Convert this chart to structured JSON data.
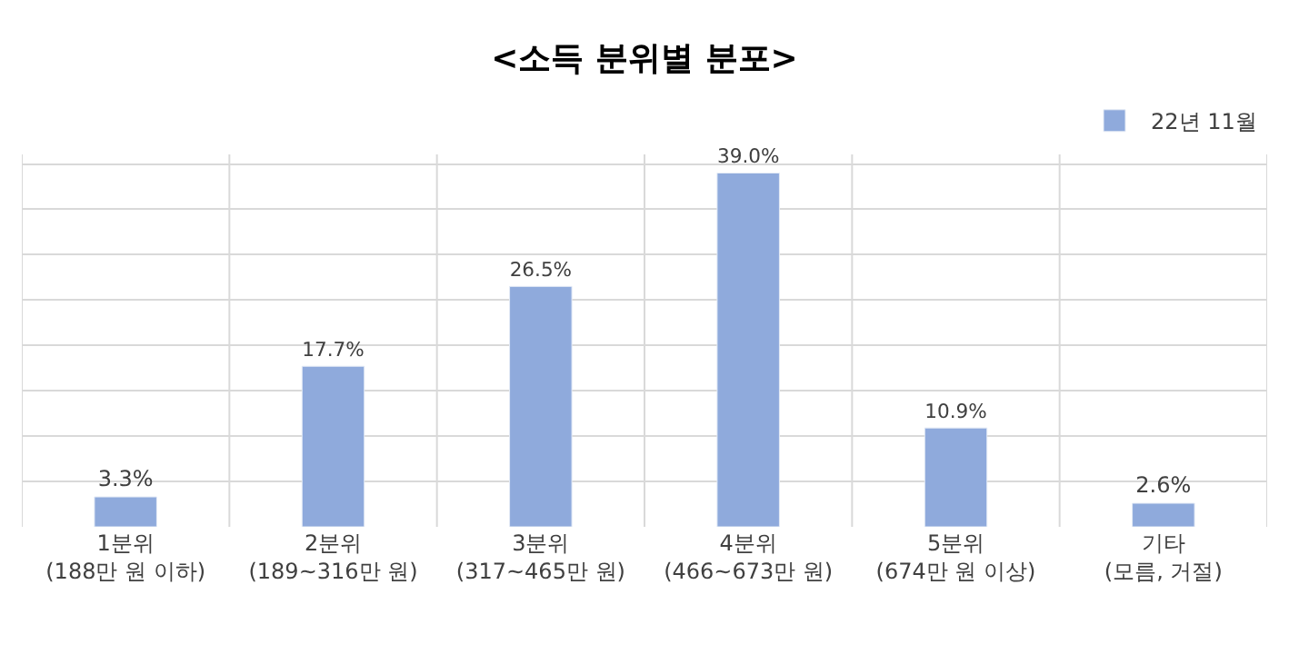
{
  "chart_data": {
    "type": "bar",
    "title": "<소득 분위별 분포>",
    "categories": [
      "1분위\n(188만 원 이하)",
      "2분위\n(189~316만 원)",
      "3분위\n(317~465만 원)",
      "4분위\n(466~673만 원)",
      "5분위\n(674만 원 이상)",
      "기타\n(모름, 거절)"
    ],
    "series": [
      {
        "name": "22년 11월",
        "color": "#8faadc",
        "values": [
          3.3,
          17.7,
          26.5,
          39.0,
          10.9,
          2.6
        ],
        "value_labels": [
          "3.3%",
          "17.7%",
          "26.5%",
          "39.0%",
          "10.9%",
          "2.6%"
        ]
      }
    ],
    "tick_labels": "x",
    "grid": true,
    "legend": "top right"
  }
}
